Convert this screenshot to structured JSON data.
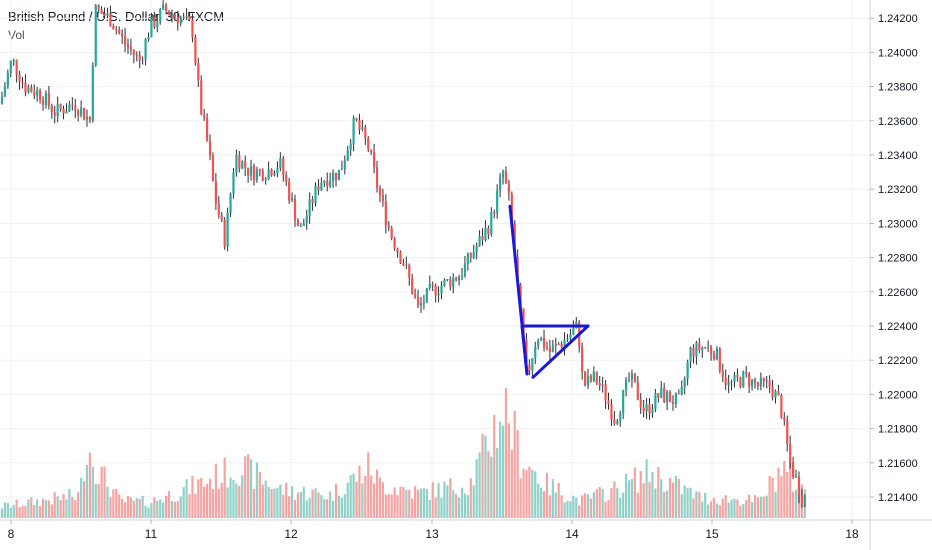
{
  "chart_data": {
    "type": "candlestick",
    "symbol_title": "British Pound / U.S. Dollar, 30, FXCM",
    "volume_label": "Vol",
    "y_axis": {
      "ticks": [
        "1.24200",
        "1.24000",
        "1.23800",
        "1.23600",
        "1.23400",
        "1.23200",
        "1.23000",
        "1.22800",
        "1.22600",
        "1.22400",
        "1.22200",
        "1.22000",
        "1.21800",
        "1.21600",
        "1.21400"
      ],
      "ylim": [
        1.2131,
        1.2431
      ]
    },
    "x_axis": {
      "ticks": [
        "8",
        "11",
        "12",
        "13",
        "14",
        "15",
        "18"
      ]
    },
    "colors": {
      "up": "#26a69a",
      "down": "#ef5350",
      "vol_up": "#8fd1c8",
      "vol_down": "#f5a3a1",
      "pattern": "#1a1ad6",
      "grid": "#eef0f3"
    },
    "price_anchors": [
      [
        0,
        1.237
      ],
      [
        12,
        1.2396
      ],
      [
        25,
        1.238
      ],
      [
        40,
        1.2376
      ],
      [
        55,
        1.2365
      ],
      [
        75,
        1.237
      ],
      [
        90,
        1.236
      ],
      [
        95,
        1.2425
      ],
      [
        110,
        1.242
      ],
      [
        125,
        1.2405
      ],
      [
        140,
        1.2395
      ],
      [
        150,
        1.2415
      ],
      [
        165,
        1.2425
      ],
      [
        180,
        1.242
      ],
      [
        192,
        1.2415
      ],
      [
        200,
        1.237
      ],
      [
        208,
        1.2345
      ],
      [
        215,
        1.2315
      ],
      [
        225,
        1.229
      ],
      [
        235,
        1.234
      ],
      [
        250,
        1.233
      ],
      [
        265,
        1.233
      ],
      [
        280,
        1.2335
      ],
      [
        293,
        1.231
      ],
      [
        300,
        1.2295
      ],
      [
        320,
        1.2325
      ],
      [
        340,
        1.233
      ],
      [
        355,
        1.236
      ],
      [
        368,
        1.2345
      ],
      [
        378,
        1.232
      ],
      [
        390,
        1.2295
      ],
      [
        405,
        1.2275
      ],
      [
        418,
        1.225
      ],
      [
        430,
        1.226
      ],
      [
        445,
        1.2265
      ],
      [
        460,
        1.227
      ],
      [
        475,
        1.2285
      ],
      [
        490,
        1.23
      ],
      [
        503,
        1.233
      ],
      [
        510,
        1.231
      ],
      [
        518,
        1.226
      ],
      [
        527,
        1.221
      ],
      [
        537,
        1.2235
      ],
      [
        550,
        1.2225
      ],
      [
        565,
        1.2232
      ],
      [
        578,
        1.224
      ],
      [
        583,
        1.2205
      ],
      [
        595,
        1.221
      ],
      [
        605,
        1.22
      ],
      [
        615,
        1.2185
      ],
      [
        630,
        1.221
      ],
      [
        645,
        1.219
      ],
      [
        660,
        1.22
      ],
      [
        680,
        1.2195
      ],
      [
        690,
        1.2225
      ],
      [
        705,
        1.2228
      ],
      [
        715,
        1.2225
      ],
      [
        728,
        1.2205
      ],
      [
        745,
        1.221
      ],
      [
        758,
        1.2205
      ],
      [
        770,
        1.2205
      ],
      [
        780,
        1.2195
      ],
      [
        790,
        1.216
      ],
      [
        802,
        1.214
      ]
    ],
    "volume_anchors": [
      [
        0,
        0.1
      ],
      [
        80,
        0.2
      ],
      [
        86,
        0.65
      ],
      [
        100,
        0.4
      ],
      [
        120,
        0.15
      ],
      [
        150,
        0.14
      ],
      [
        200,
        0.3
      ],
      [
        240,
        0.45
      ],
      [
        280,
        0.25
      ],
      [
        330,
        0.2
      ],
      [
        370,
        0.45
      ],
      [
        380,
        0.3
      ],
      [
        420,
        0.22
      ],
      [
        470,
        0.3
      ],
      [
        505,
        1.0
      ],
      [
        520,
        0.55
      ],
      [
        545,
        0.3
      ],
      [
        580,
        0.15
      ],
      [
        615,
        0.25
      ],
      [
        650,
        0.4
      ],
      [
        700,
        0.18
      ],
      [
        760,
        0.15
      ],
      [
        782,
        0.45
      ],
      [
        800,
        0.25
      ],
      [
        870,
        0.1
      ]
    ],
    "volume_scale_max": 0.0,
    "pattern_lines": [
      [
        [
          1.231,
          510
        ],
        [
          1.2212,
          527
        ]
      ],
      [
        [
          1.2212,
          527
        ],
        [
          1.224,
          522
        ]
      ],
      [
        [
          1.224,
          522
        ],
        [
          1.224,
          588
        ]
      ],
      [
        [
          1.224,
          588
        ],
        [
          1.221,
          533
        ]
      ]
    ],
    "grid": true
  }
}
